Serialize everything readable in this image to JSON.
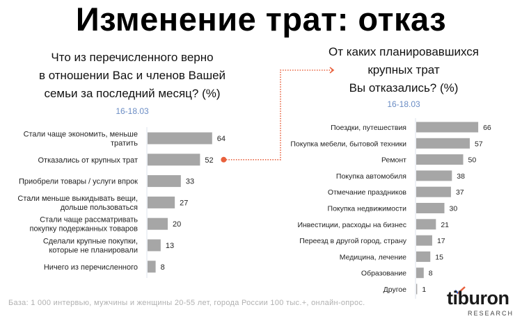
{
  "title": "Изменение трат: отказ",
  "footnote": "База: 1 000 интервью, мужчины и женщины 20-55 лет, города России 100 тыс.+, онлайн-опрос.",
  "logo": {
    "word": "tiburon",
    "sub": "RESEARCH"
  },
  "colors": {
    "bar": "#a6a6a6",
    "accent": "#e8603c",
    "date": "#6a8cc4"
  },
  "chart_data": [
    {
      "type": "bar",
      "orientation": "horizontal",
      "title_lines": [
        "Что из перечисленного верно",
        "в отношении Вас и членов Вашей",
        "семьи за последний месяц? (%)"
      ],
      "subtitle": "16-18.03",
      "categories": [
        [
          "Стали чаще экономить, меньше",
          "тратить"
        ],
        [
          "Отказались от крупных трат"
        ],
        [
          "Приобрели товары / услуги впрок"
        ],
        [
          "Стали меньше выкидывать вещи,",
          "дольше пользоваться"
        ],
        [
          "Стали чаще рассматривать",
          "покупку подержанных товаров"
        ],
        [
          "Сделали крупные покупки,",
          "которые не планировали"
        ],
        [
          "Ничего из перечисленного"
        ]
      ],
      "values": [
        64,
        52,
        33,
        27,
        20,
        13,
        8
      ],
      "highlight_index": 1
    },
    {
      "type": "bar",
      "orientation": "horizontal",
      "title_lines": [
        "От каких планировавшихся",
        "крупных трат",
        "Вы отказались? (%)"
      ],
      "subtitle": "16-18.03",
      "categories": [
        [
          "Поездки, путешествия"
        ],
        [
          "Покупка мебели, бытовой техники"
        ],
        [
          "Ремонт"
        ],
        [
          "Покупка автомобиля"
        ],
        [
          "Отмечание праздников"
        ],
        [
          "Покупка недвижимости"
        ],
        [
          "Инвестиции, расходы на бизнес"
        ],
        [
          "Переезд в другой город, страну"
        ],
        [
          "Медицина, лечение"
        ],
        [
          "Образование"
        ],
        [
          "Другое"
        ]
      ],
      "values": [
        66,
        57,
        50,
        38,
        37,
        30,
        21,
        17,
        15,
        8,
        1
      ]
    }
  ]
}
